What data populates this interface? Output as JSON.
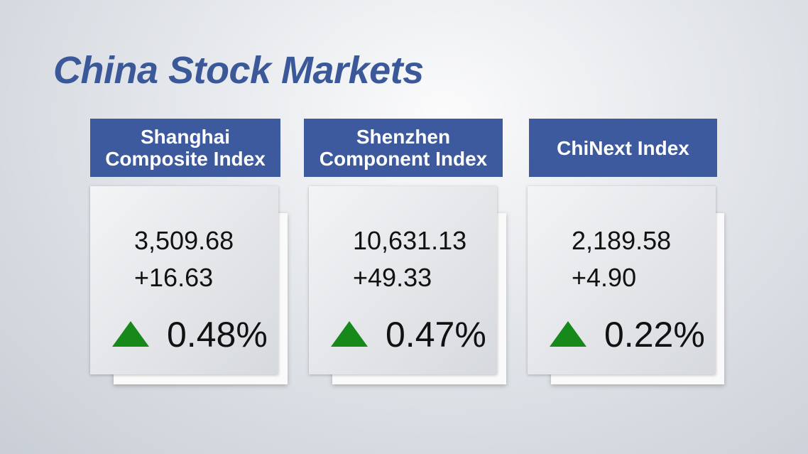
{
  "title": "China Stock Markets",
  "cards": [
    {
      "name": "Shanghai Composite Index",
      "value": "3,509.68",
      "change": "+16.63",
      "percent": "0.48%"
    },
    {
      "name": "Shenzhen Component Index",
      "value": "10,631.13",
      "change": "+49.33",
      "percent": "0.47%"
    },
    {
      "name": "ChiNext Index",
      "value": "2,189.58",
      "change": "+4.90",
      "percent": "0.22%"
    }
  ]
}
